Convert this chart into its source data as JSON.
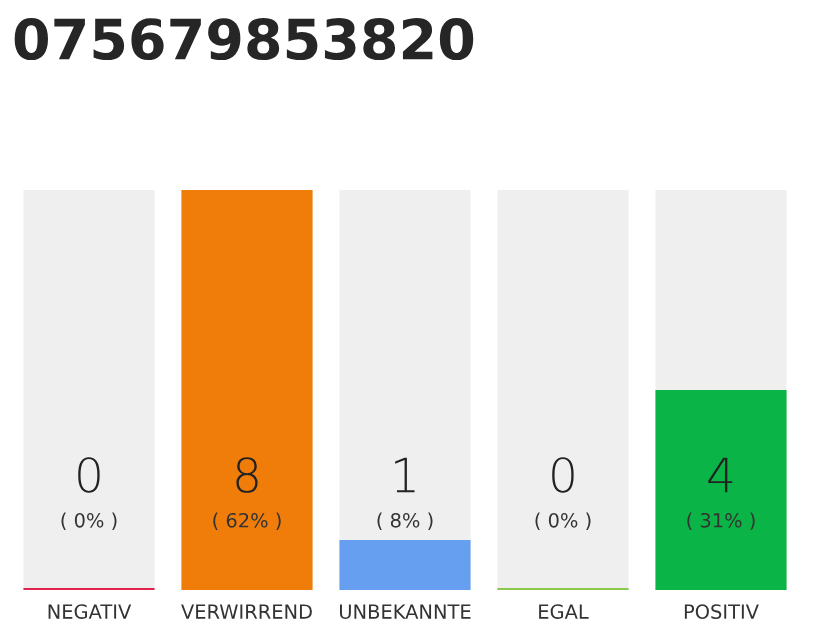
{
  "chart_data": {
    "type": "bar",
    "title": "075679853820",
    "categories": [
      "NEGATIV",
      "VERWIRREND",
      "UNBEKANNTE",
      "EGAL",
      "POSITIV"
    ],
    "values": [
      0,
      8,
      1,
      0,
      4
    ],
    "colors": [
      "#e0234e",
      "#f07d0a",
      "#669ef0",
      "#8cc850",
      "#0bb446"
    ],
    "ylim": [
      0,
      8
    ],
    "tick_labels": "x",
    "data_labels": true,
    "annotations": [
      "( 0% )",
      "( 62% )",
      "( 8% )",
      "( 0% )",
      "( 31% )"
    ]
  }
}
